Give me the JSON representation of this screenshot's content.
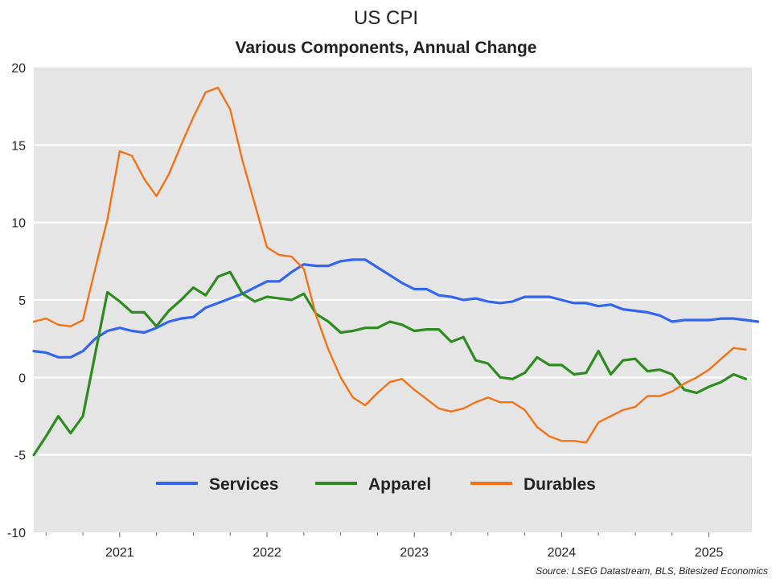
{
  "chart_data": {
    "type": "line",
    "title": "US CPI",
    "subtitle": "Various Components, Annual Change",
    "xlabel": "",
    "ylabel": "",
    "ylim": [
      -10,
      20
    ],
    "yticks": [
      "20",
      "15",
      "10",
      "5",
      "0",
      "-5",
      "-10"
    ],
    "ytick_values": [
      20,
      15,
      10,
      5,
      0,
      -5,
      -10
    ],
    "xticks": [
      "2021",
      "2022",
      "2023",
      "2024",
      "2025"
    ],
    "xtick_index": [
      7,
      19,
      31,
      43,
      55
    ],
    "x_start_index": 0,
    "x_end_index": 58.5,
    "legend_position": "bottom-center",
    "grid": true,
    "source": "Source: LSEG Datastream, BLS, Bitesized Economics",
    "series": [
      {
        "name": "Services",
        "color": "#3366ee",
        "values": [
          1.7,
          1.6,
          1.3,
          1.3,
          1.7,
          2.5,
          3.0,
          3.2,
          3.0,
          2.9,
          3.2,
          3.6,
          3.8,
          3.9,
          4.5,
          4.8,
          5.1,
          5.4,
          5.8,
          6.2,
          6.2,
          6.8,
          7.3,
          7.2,
          7.2,
          7.5,
          7.6,
          7.6,
          7.1,
          6.6,
          6.1,
          5.7,
          5.7,
          5.3,
          5.2,
          5.0,
          5.1,
          4.9,
          4.8,
          4.9,
          5.2,
          5.2,
          5.2,
          5.0,
          4.8,
          4.8,
          4.6,
          4.7,
          4.4,
          4.3,
          4.2,
          4.0,
          3.6,
          3.7,
          3.7,
          3.7,
          3.8,
          3.8,
          3.7,
          3.6
        ]
      },
      {
        "name": "Apparel",
        "color": "#2e8b1f",
        "values": [
          -5.0,
          -3.8,
          -2.5,
          -3.6,
          -2.5,
          1.5,
          5.5,
          4.9,
          4.2,
          4.2,
          3.3,
          4.3,
          5.0,
          5.8,
          5.3,
          6.5,
          6.8,
          5.4,
          4.9,
          5.2,
          5.1,
          5.0,
          5.4,
          4.1,
          3.6,
          2.9,
          3.0,
          3.2,
          3.2,
          3.6,
          3.4,
          3.0,
          3.1,
          3.1,
          2.3,
          2.6,
          1.1,
          0.9,
          0.0,
          -0.1,
          0.3,
          1.3,
          0.8,
          0.8,
          0.2,
          0.3,
          1.7,
          0.2,
          1.1,
          1.2,
          0.4,
          0.5,
          0.2,
          -0.8,
          -1.0,
          -0.6,
          -0.3,
          0.2,
          -0.1
        ]
      },
      {
        "name": "Durables",
        "color": "#f47216",
        "values": [
          3.6,
          3.8,
          3.4,
          3.3,
          3.7,
          7.0,
          10.2,
          14.6,
          14.3,
          12.8,
          11.7,
          13.1,
          15.0,
          16.8,
          18.4,
          18.7,
          17.3,
          14.0,
          11.2,
          8.4,
          7.9,
          7.8,
          7.0,
          4.0,
          1.8,
          0.0,
          -1.3,
          -1.8,
          -1.0,
          -0.3,
          -0.1,
          -0.8,
          -1.4,
          -2.0,
          -2.2,
          -2.0,
          -1.6,
          -1.3,
          -1.6,
          -1.6,
          -2.1,
          -3.2,
          -3.8,
          -4.1,
          -4.1,
          -4.2,
          -2.9,
          -2.5,
          -2.1,
          -1.9,
          -1.2,
          -1.2,
          -0.9,
          -0.4,
          0.0,
          0.5,
          1.2,
          1.9,
          1.8
        ]
      }
    ]
  }
}
